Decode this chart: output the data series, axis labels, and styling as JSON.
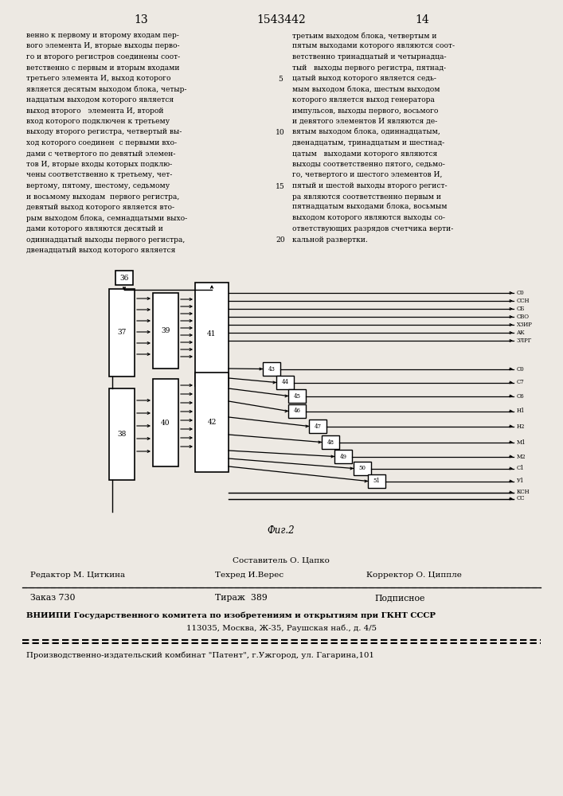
{
  "page_numbers": [
    "13",
    "14"
  ],
  "patent_number": "1543442",
  "col1_lines": [
    "венно к первому и второму входам пер-",
    "вого элемента И, вторые выходы перво-",
    "го и второго регистров соединены соот-",
    "ветственно с первым и вторым входами",
    "третьего элемента И, выход которого",
    "является десятым выходом блока, четыр-",
    "надцатым выходом которого является",
    "выход второго   элемента И, второй",
    "вход которого подключен к третьему",
    "выходу второго регистра, четвертый вы-",
    "ход которого соединен  с первыми вхо-",
    "дами с четвертого по девятый элемен-",
    "тов И, вторые входы которых подклю-",
    "чены соответственно к третьему, чет-",
    "вертому, пятому, шестому, седьмому",
    "и восьмому выходам  первого регистра,",
    "девятый выход которого является вто-",
    "рым выходом блока, семнадцатыми выхо-",
    "дами которого являются десятый и",
    "одиннадцатый выходы первого регистра,",
    "двенадцатый выход которого является"
  ],
  "col2_lines": [
    "третьим выходом блока, четвертым и",
    "пятым выходами которого являются соот-",
    "ветственно тринадцатый и четырнадца-",
    "тый   выходы первого регистра, пятнад-",
    "цатый выход которого является седь-",
    "мым выходом блока, шестым выходом",
    "которого является выход генератора",
    "импульсов, выходы первого, восьмого",
    "и девятого элементов И являются де-",
    "вятым выходом блока, одиннадцатым,",
    "двенадцатым, тринадцатым и шестнад-",
    "цатым   выходами которого являются",
    "выходы соответственно пятого, седьмо-",
    "го, четвертого и шестого элементов И,",
    "пятый и шестой выходы второго регист-",
    "ра являются соответственно первым и",
    "пятнадцатым выходами блока, восьмым",
    "выходом которого являются выходы со-",
    "ответствующих разрядов счетчика верти-",
    "кальной развертки."
  ],
  "line_numbers": {
    "4": "5",
    "9": "10",
    "14": "15",
    "19": "20"
  },
  "fig_caption": "Фиг.2",
  "footer_sestavitel": "Составитель О. Цапко",
  "footer_redaktor": "Редактор М. Циткина",
  "footer_tehred": "Техред И.Верес",
  "footer_korrektor": "Корректор О. Циппле",
  "footer_zakaz": "Заказ 730",
  "footer_tirazh": "Тираж  389",
  "footer_podpisnoe": "Подписное",
  "footer_vnipi1": "ВНИИПИ Государственного комитета по изобретениям и открытиям при ГКНТ СССР",
  "footer_vnipi2": "113035, Москва, Ж-35, Раушская наб., д. 4/5",
  "footer_factory": "Производственно-издательский комбинат \"Патент\", г.Ужгород, ул. Гагарина,101",
  "bg_color": "#ede9e3",
  "right_labels_top": [
    "С0",
    "ССН",
    "СБ",
    "СВО",
    "ХЗИР",
    "АК",
    "ЗЛРГ"
  ],
  "right_labels_bot": [
    "С0",
    "С7",
    "С6",
    "Н1",
    "Н2",
    "М1",
    "М2",
    "С1",
    "У1",
    "КСН",
    "СС"
  ]
}
